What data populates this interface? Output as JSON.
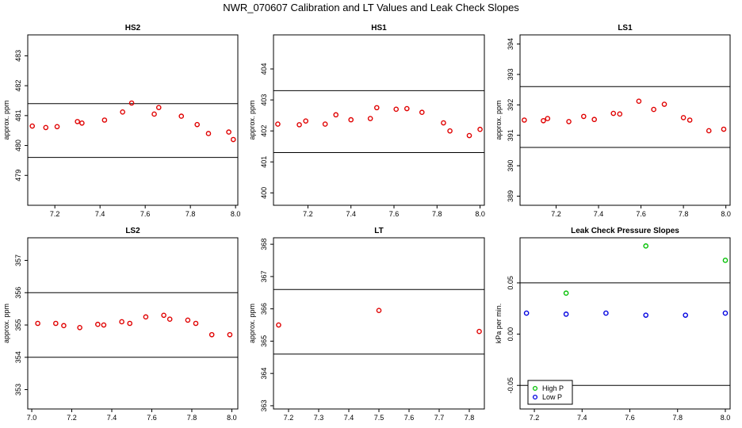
{
  "page": {
    "title": "NWR_070607  Calibration and LT Values and Leak Check Slopes"
  },
  "chart_data": [
    {
      "type": "scatter",
      "title": "HS2",
      "xlabel": "",
      "ylabel": "approx. ppm",
      "xlim": [
        7.08,
        8.01
      ],
      "ylim": [
        478.0,
        483.7
      ],
      "x_ticks": [
        7.2,
        7.4,
        7.6,
        7.8,
        8.0
      ],
      "y_ticks": [
        479,
        480,
        481,
        482,
        483
      ],
      "x_tick_labels": [
        "7.2",
        "7.4",
        "7.6",
        "7.8",
        "8.0"
      ],
      "y_tick_labels": [
        "479",
        "480",
        "481",
        "482",
        "483"
      ],
      "hlines": [
        481.4,
        479.6
      ],
      "series": [
        {
          "color": "#e00000",
          "x": [
            7.1,
            7.16,
            7.21,
            7.3,
            7.32,
            7.42,
            7.5,
            7.54,
            7.64,
            7.66,
            7.76,
            7.83,
            7.88,
            7.97,
            7.99
          ],
          "y": [
            480.65,
            480.6,
            480.63,
            480.8,
            480.75,
            480.85,
            481.12,
            481.42,
            481.05,
            481.27,
            480.98,
            480.7,
            480.4,
            480.45,
            480.2
          ]
        }
      ]
    },
    {
      "type": "scatter",
      "title": "HS1",
      "xlabel": "",
      "ylabel": "approx. ppm",
      "xlim": [
        7.04,
        8.02
      ],
      "ylim": [
        399.6,
        405.1
      ],
      "x_ticks": [
        7.2,
        7.4,
        7.6,
        7.8,
        8.0
      ],
      "y_ticks": [
        400,
        401,
        402,
        403,
        404
      ],
      "x_tick_labels": [
        "7.2",
        "7.4",
        "7.6",
        "7.8",
        "8.0"
      ],
      "y_tick_labels": [
        "400",
        "401",
        "402",
        "403",
        "404"
      ],
      "hlines": [
        403.3,
        401.3
      ],
      "series": [
        {
          "color": "#e00000",
          "x": [
            7.06,
            7.16,
            7.19,
            7.28,
            7.33,
            7.4,
            7.49,
            7.52,
            7.61,
            7.66,
            7.73,
            7.83,
            7.86,
            7.95,
            8.0
          ],
          "y": [
            402.22,
            402.2,
            402.32,
            402.22,
            402.52,
            402.36,
            402.4,
            402.75,
            402.7,
            402.72,
            402.6,
            402.26,
            402.0,
            401.85,
            402.05
          ]
        }
      ]
    },
    {
      "type": "scatter",
      "title": "LS1",
      "xlabel": "",
      "ylabel": "approx. ppm",
      "xlim": [
        7.03,
        8.02
      ],
      "ylim": [
        388.7,
        394.3
      ],
      "x_ticks": [
        7.2,
        7.4,
        7.6,
        7.8,
        8.0
      ],
      "y_ticks": [
        389,
        390,
        391,
        392,
        393,
        394
      ],
      "x_tick_labels": [
        "7.2",
        "7.4",
        "7.6",
        "7.8",
        "8.0"
      ],
      "y_tick_labels": [
        "389",
        "390",
        "391",
        "392",
        "393",
        "394"
      ],
      "hlines": [
        392.6,
        390.6
      ],
      "series": [
        {
          "color": "#e00000",
          "x": [
            7.05,
            7.14,
            7.16,
            7.26,
            7.33,
            7.38,
            7.47,
            7.5,
            7.59,
            7.66,
            7.71,
            7.8,
            7.83,
            7.92,
            7.99
          ],
          "y": [
            391.5,
            391.48,
            391.55,
            391.45,
            391.62,
            391.52,
            391.72,
            391.7,
            392.12,
            391.85,
            392.02,
            391.58,
            391.5,
            391.15,
            391.2
          ]
        }
      ]
    },
    {
      "type": "scatter",
      "title": "LS2",
      "xlabel": "",
      "ylabel": "approx. ppm",
      "xlim": [
        6.98,
        8.03
      ],
      "ylim": [
        352.4,
        357.7
      ],
      "x_ticks": [
        7.0,
        7.2,
        7.4,
        7.6,
        7.8,
        8.0
      ],
      "y_ticks": [
        353,
        354,
        355,
        356,
        357
      ],
      "x_tick_labels": [
        "7.0",
        "7.2",
        "7.4",
        "7.6",
        "7.8",
        "8.0"
      ],
      "y_tick_labels": [
        "353",
        "354",
        "355",
        "356",
        "357"
      ],
      "hlines": [
        356.0,
        354.0
      ],
      "series": [
        {
          "color": "#e00000",
          "x": [
            7.03,
            7.12,
            7.16,
            7.24,
            7.33,
            7.36,
            7.45,
            7.49,
            7.57,
            7.66,
            7.69,
            7.78,
            7.82,
            7.9,
            7.99
          ],
          "y": [
            355.05,
            355.05,
            354.98,
            354.92,
            355.02,
            355.0,
            355.1,
            355.05,
            355.25,
            355.3,
            355.18,
            355.15,
            355.05,
            354.7,
            354.7
          ]
        }
      ]
    },
    {
      "type": "scatter",
      "title": "LT",
      "xlabel": "",
      "ylabel": "approx. ppm",
      "xlim": [
        7.15,
        7.85
      ],
      "ylim": [
        362.9,
        368.2
      ],
      "x_ticks": [
        7.2,
        7.3,
        7.4,
        7.5,
        7.6,
        7.7,
        7.8
      ],
      "y_ticks": [
        363,
        364,
        365,
        366,
        367,
        368
      ],
      "x_tick_labels": [
        "7.2",
        "7.3",
        "7.4",
        "7.5",
        "7.6",
        "7.7",
        "7.8"
      ],
      "y_tick_labels": [
        "363",
        "364",
        "365",
        "366",
        "367",
        "368"
      ],
      "hlines": [
        366.6,
        364.6
      ],
      "series": [
        {
          "color": "#e00000",
          "x": [
            7.167,
            7.5,
            7.833
          ],
          "y": [
            365.5,
            365.95,
            365.3
          ]
        }
      ]
    },
    {
      "type": "scatter",
      "title": "Leak Check Pressure Slopes",
      "xlabel": "",
      "ylabel": "kPa per min.",
      "xlim": [
        7.14,
        8.02
      ],
      "ylim": [
        -0.073,
        0.094
      ],
      "x_ticks": [
        7.2,
        7.4,
        7.6,
        7.8,
        8.0
      ],
      "y_ticks": [
        -0.05,
        0.0,
        0.05
      ],
      "x_tick_labels": [
        "7.2",
        "7.4",
        "7.6",
        "7.8",
        "8.0"
      ],
      "y_tick_labels": [
        "-0.05",
        "0.00",
        "0.05"
      ],
      "hlines": [
        0.05,
        -0.05
      ],
      "legend": {
        "position": "bottom-left",
        "entries": [
          "High P",
          "Low P"
        ]
      },
      "series": [
        {
          "name": "High P",
          "color": "#00c000",
          "x": [
            7.333,
            7.667,
            8.0
          ],
          "y": [
            0.04,
            0.086,
            0.072
          ]
        },
        {
          "name": "Low P",
          "color": "#0000e0",
          "x": [
            7.167,
            7.333,
            7.5,
            7.667,
            7.833,
            8.0
          ],
          "y": [
            0.0205,
            0.0195,
            0.0205,
            0.0185,
            0.0185,
            0.0205
          ]
        }
      ]
    }
  ]
}
